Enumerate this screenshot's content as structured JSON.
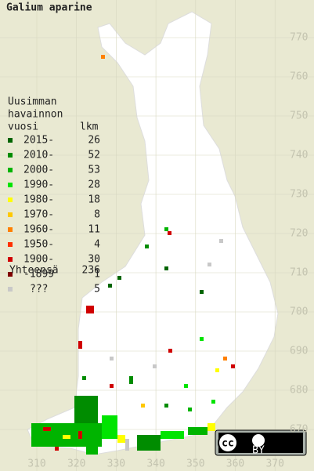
{
  "title": "Galium aparine",
  "legend": {
    "heading": [
      "Uusimman",
      "havainnon",
      "vuosi"
    ],
    "count_heading": "lkm",
    "rows": [
      {
        "label": "2015-",
        "count": 26,
        "color": "#006400"
      },
      {
        "label": "2010-",
        "count": 52,
        "color": "#008c00"
      },
      {
        "label": "2000-",
        "count": 53,
        "color": "#00b400"
      },
      {
        "label": "1990-",
        "count": 28,
        "color": "#00e400"
      },
      {
        "label": "1980-",
        "count": 18,
        "color": "#ffff00"
      },
      {
        "label": "1970-",
        "count": 8,
        "color": "#ffc800"
      },
      {
        "label": "1960-",
        "count": 11,
        "color": "#ff8000"
      },
      {
        "label": "1950-",
        "count": 4,
        "color": "#ff3000"
      },
      {
        "label": "1900-",
        "count": 30,
        "color": "#d00000"
      },
      {
        "label": "-1899",
        "count": 1,
        "color": "#800000"
      },
      {
        "label": "???",
        "count": 5,
        "color": "#c8c8c8"
      }
    ],
    "total_label": "Yhteensä",
    "total": 236
  },
  "y_axis": {
    "ticks": [
      770,
      760,
      750,
      740,
      730,
      720,
      710,
      700,
      690,
      680,
      670
    ]
  },
  "x_axis": {
    "ticks": [
      310,
      320,
      330,
      340,
      350,
      360,
      370
    ]
  },
  "badge": "BY"
}
